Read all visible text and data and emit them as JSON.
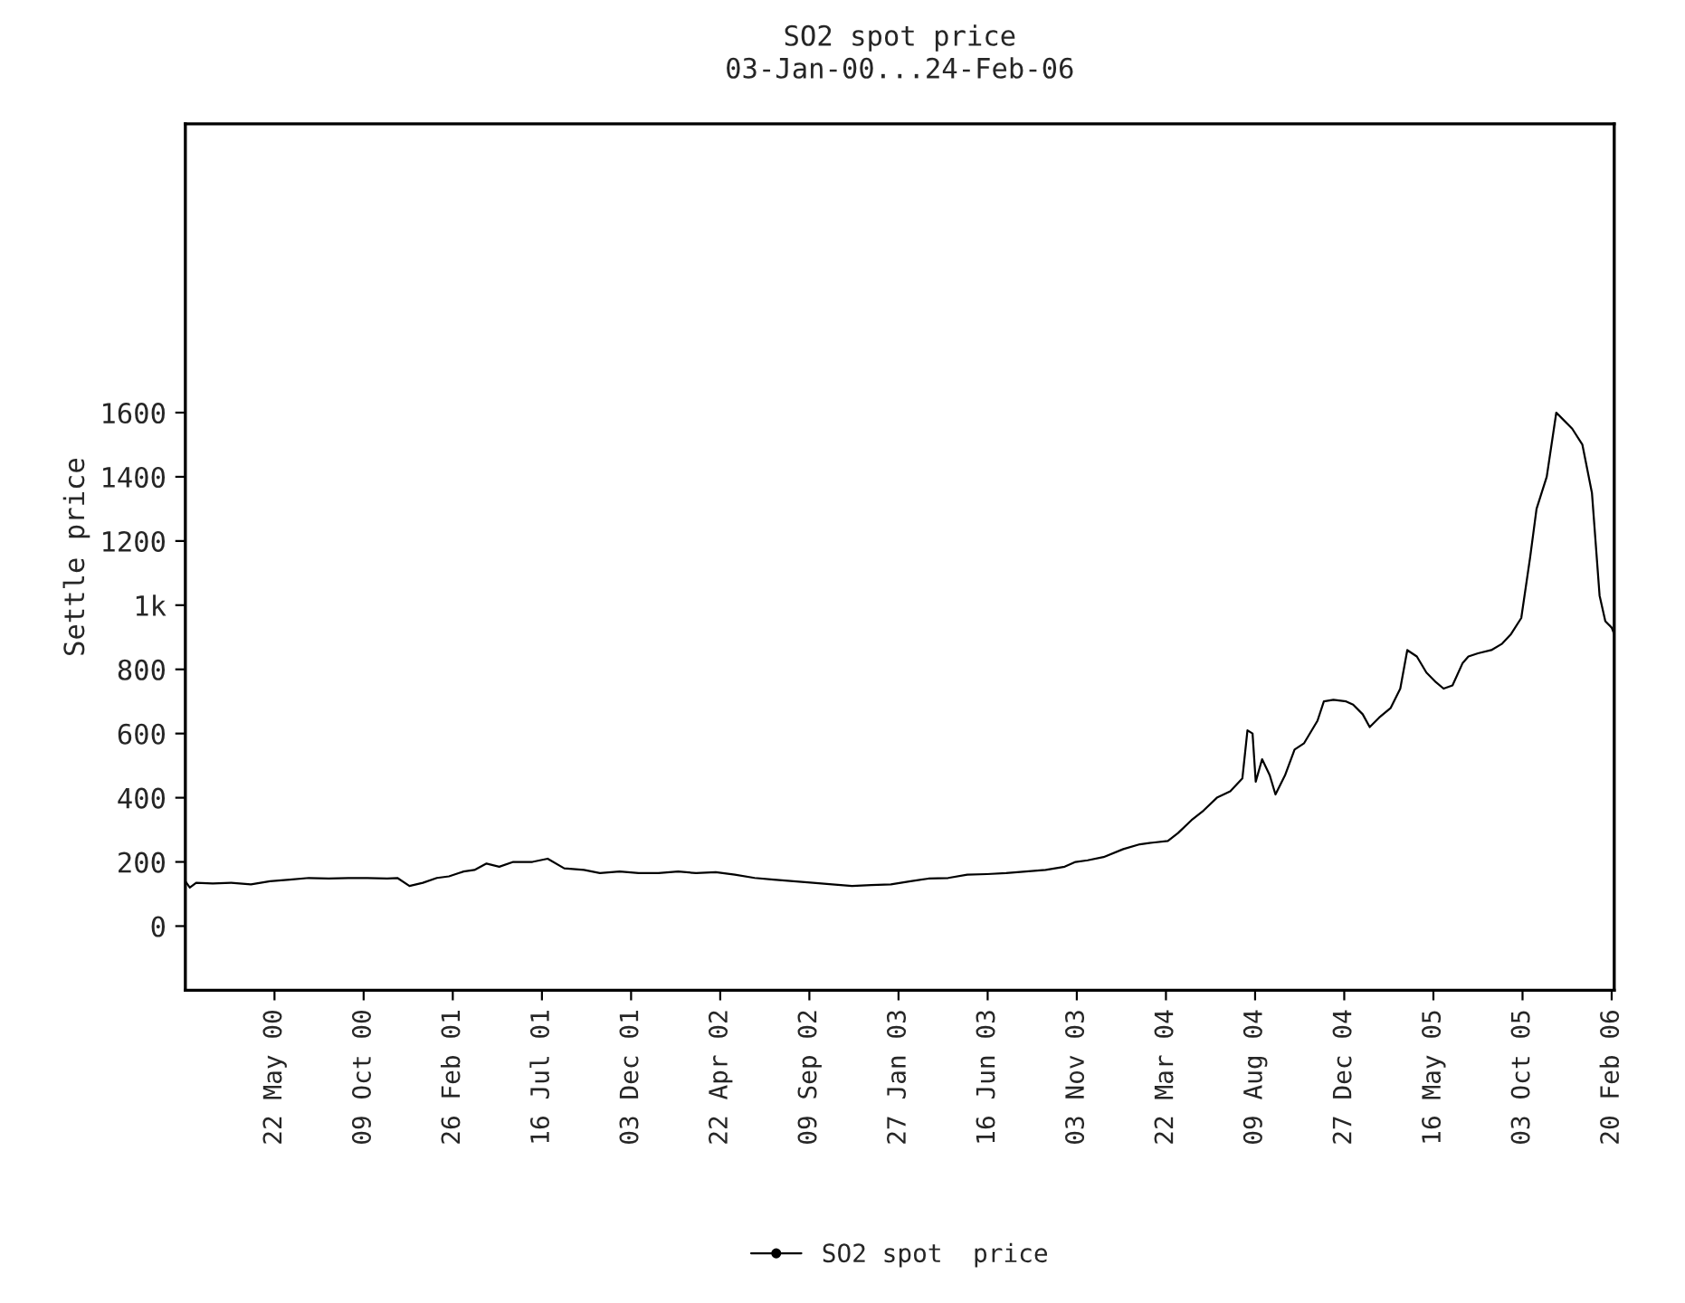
{
  "chart_data": {
    "type": "line",
    "title": "SO2 spot price",
    "subtitle": "03-Jan-00...24-Feb-06",
    "ylabel": "Settle price",
    "xlim": [
      "2000-01-03",
      "2006-02-24"
    ],
    "xticks": [
      {
        "value": "2000-05-22",
        "label": "22 May 00"
      },
      {
        "value": "2000-10-09",
        "label": "09 Oct 00"
      },
      {
        "value": "2001-02-26",
        "label": "26 Feb 01"
      },
      {
        "value": "2001-07-16",
        "label": "16 Jul 01"
      },
      {
        "value": "2001-12-03",
        "label": "03 Dec 01"
      },
      {
        "value": "2002-04-22",
        "label": "22 Apr 02"
      },
      {
        "value": "2002-09-09",
        "label": "09 Sep 02"
      },
      {
        "value": "2003-01-27",
        "label": "27 Jan 03"
      },
      {
        "value": "2003-06-16",
        "label": "16 Jun 03"
      },
      {
        "value": "2003-11-03",
        "label": "03 Nov 03"
      },
      {
        "value": "2004-03-22",
        "label": "22 Mar 04"
      },
      {
        "value": "2004-08-09",
        "label": "09 Aug 04"
      },
      {
        "value": "2004-12-27",
        "label": "27 Dec 04"
      },
      {
        "value": "2005-05-16",
        "label": "16 May 05"
      },
      {
        "value": "2005-10-03",
        "label": "03 Oct 05"
      },
      {
        "value": "2006-02-20",
        "label": "20 Feb 06"
      }
    ],
    "ylim": [
      -200,
      2500
    ],
    "yticks": [
      0,
      200,
      400,
      600,
      800,
      {
        "value": 1000,
        "label": "1k"
      },
      1200,
      1400,
      1600
    ],
    "grid": false,
    "legend": "bottom",
    "line_style": "solid",
    "x": [
      "2000-01-03",
      "2000-01-10",
      "2000-01-20",
      "2000-02-15",
      "2000-03-15",
      "2000-04-15",
      "2000-05-15",
      "2000-06-15",
      "2000-07-15",
      "2000-08-15",
      "2000-09-15",
      "2000-10-15",
      "2000-11-15",
      "2000-12-01",
      "2000-12-20",
      "2001-01-10",
      "2001-02-01",
      "2001-02-20",
      "2001-03-15",
      "2001-04-01",
      "2001-04-20",
      "2001-05-10",
      "2001-06-01",
      "2001-07-01",
      "2001-07-25",
      "2001-08-20",
      "2001-09-20",
      "2001-10-15",
      "2001-11-15",
      "2001-12-15",
      "2002-01-15",
      "2002-02-15",
      "2002-03-15",
      "2002-04-15",
      "2002-05-15",
      "2002-06-15",
      "2002-07-15",
      "2002-08-15",
      "2002-09-15",
      "2002-10-15",
      "2002-11-15",
      "2002-12-15",
      "2003-01-15",
      "2003-02-15",
      "2003-03-15",
      "2003-04-15",
      "2003-05-15",
      "2003-06-15",
      "2003-07-15",
      "2003-08-15",
      "2003-09-15",
      "2003-10-15",
      "2003-11-01",
      "2003-11-20",
      "2003-12-15",
      "2004-01-15",
      "2004-02-10",
      "2004-03-01",
      "2004-03-25",
      "2004-04-10",
      "2004-05-01",
      "2004-05-20",
      "2004-06-10",
      "2004-07-01",
      "2004-07-20",
      "2004-07-28",
      "2004-08-05",
      "2004-08-10",
      "2004-08-20",
      "2004-09-01",
      "2004-09-10",
      "2004-09-25",
      "2004-10-10",
      "2004-10-25",
      "2004-11-15",
      "2004-11-25",
      "2004-12-10",
      "2004-12-30",
      "2005-01-10",
      "2005-01-25",
      "2005-02-05",
      "2005-02-20",
      "2005-03-10",
      "2005-03-25",
      "2005-04-05",
      "2005-04-20",
      "2005-05-05",
      "2005-05-20",
      "2005-06-01",
      "2005-06-15",
      "2005-07-01",
      "2005-07-10",
      "2005-07-25",
      "2005-08-15",
      "2005-09-01",
      "2005-09-15",
      "2005-10-01",
      "2005-10-15",
      "2005-10-25",
      "2005-11-10",
      "2005-11-25",
      "2005-12-05",
      "2005-12-20",
      "2006-01-05",
      "2006-01-20",
      "2006-02-01",
      "2006-02-10",
      "2006-02-20",
      "2006-02-24"
    ],
    "series": [
      {
        "name": "SO2 spot  price",
        "color": "#000000",
        "values": [
          140,
          120,
          135,
          133,
          135,
          130,
          140,
          145,
          150,
          148,
          150,
          150,
          148,
          150,
          125,
          135,
          150,
          155,
          170,
          175,
          195,
          185,
          200,
          200,
          210,
          180,
          175,
          165,
          170,
          165,
          165,
          170,
          165,
          168,
          160,
          150,
          145,
          140,
          135,
          130,
          125,
          128,
          130,
          140,
          148,
          150,
          160,
          162,
          165,
          170,
          175,
          185,
          200,
          205,
          215,
          240,
          255,
          260,
          265,
          290,
          330,
          360,
          400,
          420,
          460,
          610,
          600,
          450,
          520,
          470,
          410,
          470,
          550,
          570,
          640,
          700,
          705,
          700,
          690,
          660,
          620,
          650,
          680,
          740,
          860,
          840,
          790,
          760,
          740,
          750,
          820,
          840,
          850,
          860,
          880,
          910,
          960,
          1150,
          1300,
          1400,
          1600,
          1580,
          1550,
          1500,
          1350,
          1030,
          950,
          930,
          910
        ]
      }
    ]
  }
}
